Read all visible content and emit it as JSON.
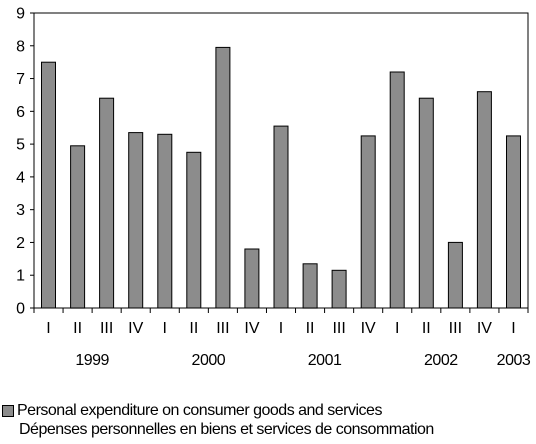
{
  "colors": {
    "bar_fill": "#8c8c8c",
    "bar_stroke": "#000000",
    "axis": "#000000"
  },
  "chart_data": {
    "type": "bar",
    "categories": [
      "I",
      "II",
      "III",
      "IV",
      "I",
      "II",
      "III",
      "IV",
      "I",
      "II",
      "III",
      "IV",
      "I",
      "II",
      "III",
      "IV",
      "I"
    ],
    "year_labels": [
      {
        "label": "1999",
        "index": 1.5
      },
      {
        "label": "2000",
        "index": 5.5
      },
      {
        "label": "2001",
        "index": 9.5
      },
      {
        "label": "2002",
        "index": 13.5
      },
      {
        "label": "2003",
        "index": 16
      }
    ],
    "series": [
      {
        "name": "Personal expenditure on consumer goods and services",
        "values": [
          7.5,
          4.95,
          6.4,
          5.35,
          5.3,
          4.75,
          7.95,
          1.8,
          5.55,
          1.35,
          1.15,
          5.25,
          7.2,
          6.4,
          2.0,
          6.6,
          5.25
        ]
      }
    ],
    "ylim": [
      0,
      9
    ],
    "yticks": [
      "0",
      "1",
      "2",
      "3",
      "4",
      "5",
      "6",
      "7",
      "8",
      "9"
    ],
    "grid": false,
    "legend_position": "bottom-left"
  },
  "legend": {
    "line1": "Personal expenditure on consumer goods and services",
    "line2": "Dépenses personnelles en biens et services de consommation"
  }
}
